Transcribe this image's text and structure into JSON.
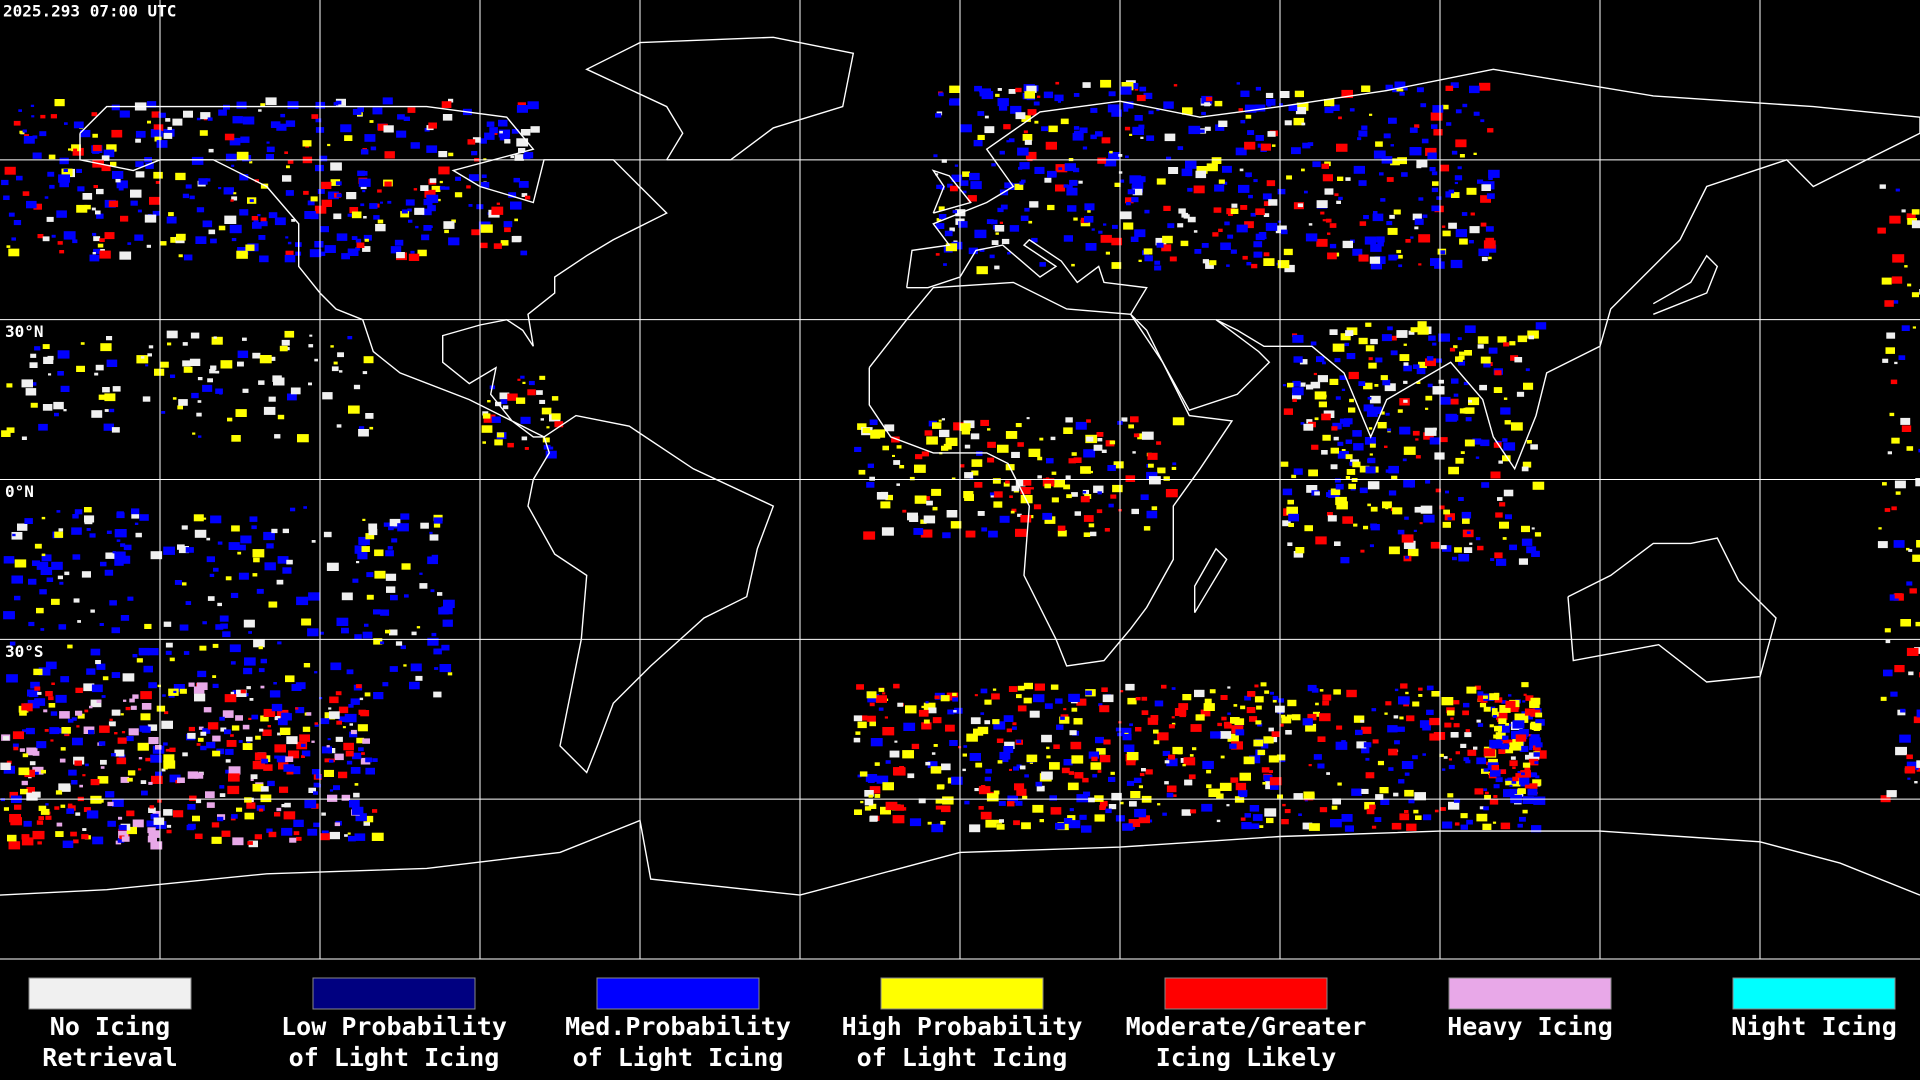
{
  "header": {
    "timestamp": "2025.293 07:00 UTC"
  },
  "map": {
    "latitude_labels": [
      "30°N",
      "0°N",
      "30°S"
    ]
  },
  "legend": {
    "items": [
      {
        "label": [
          "No Icing",
          "Retrieval"
        ],
        "color": "#f0f0f0"
      },
      {
        "label": [
          "Low Probability",
          "of Light Icing"
        ],
        "color": "#000080"
      },
      {
        "label": [
          "Med.Probability",
          "of Light Icing"
        ],
        "color": "#0000ff"
      },
      {
        "label": [
          "High Probability",
          "of Light Icing"
        ],
        "color": "#ffff00"
      },
      {
        "label": [
          "Moderate/Greater",
          "Icing Likely"
        ],
        "color": "#ff0000"
      },
      {
        "label": [
          "Heavy Icing"
        ],
        "color": "#e8a8e8"
      },
      {
        "label": [
          "Night Icing"
        ],
        "color": "#00ffff"
      }
    ]
  }
}
